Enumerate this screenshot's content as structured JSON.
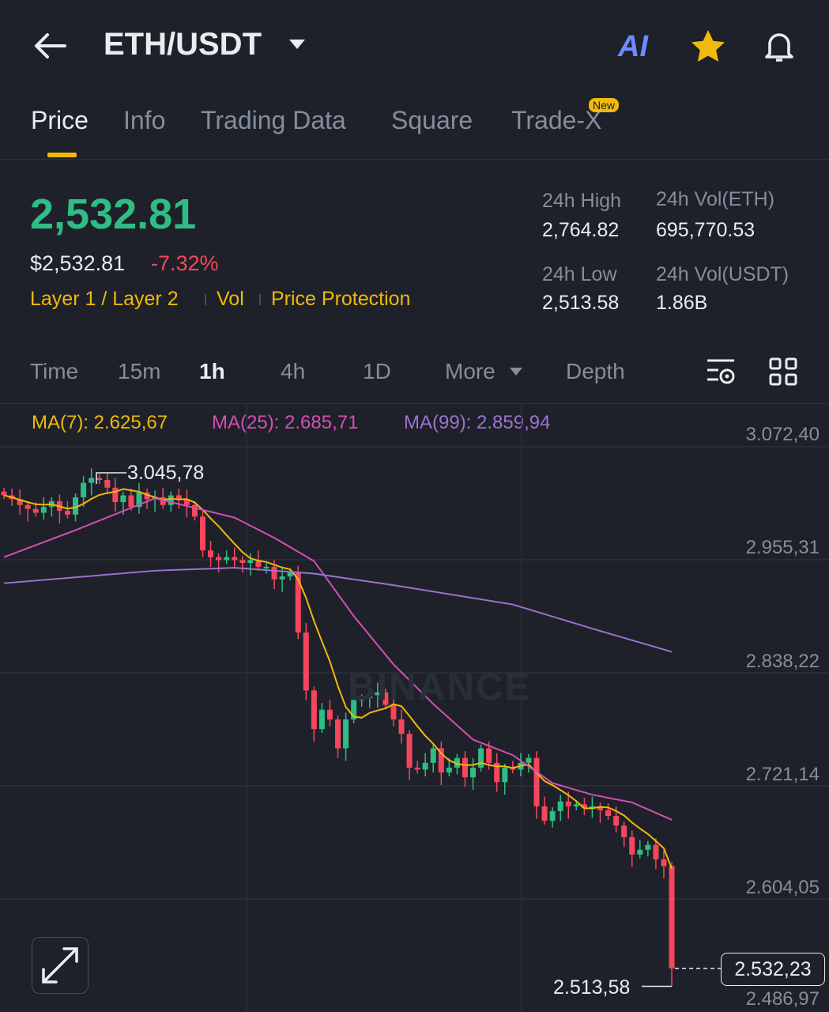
{
  "header": {
    "title": "ETH/USDT",
    "icons": [
      "back-arrow-icon",
      "ai-icon",
      "star-icon",
      "bell-icon"
    ]
  },
  "tabs": [
    {
      "label": "Price",
      "active": true
    },
    {
      "label": "Info"
    },
    {
      "label": "Trading Data"
    },
    {
      "label": "Square"
    },
    {
      "label": "Trade-X",
      "badge": "New"
    }
  ],
  "ticker": {
    "last_price": "2,532.81",
    "usd_price": "$2,532.81",
    "change": "-7.32%",
    "tags": [
      "Layer 1 / Layer 2",
      "Vol",
      "Price Protection"
    ],
    "high_label": "24h High",
    "high": "2,764.82",
    "low_label": "24h Low",
    "low": "2,513.58",
    "vol_eth_label": "24h Vol(ETH)",
    "vol_eth": "695,770.53",
    "vol_usdt_label": "24h Vol(USDT)",
    "vol_usdt": "1.86B"
  },
  "timeframes": {
    "items": [
      "Time",
      "15m",
      "1h",
      "4h",
      "1D"
    ],
    "selected": "1h",
    "more": "More",
    "depth": "Depth"
  },
  "ma_legend": {
    "ma7": "MA(7): 2.625,67",
    "ma25": "MA(25): 2.685,71",
    "ma99": "MA(99): 2.859,94"
  },
  "colors": {
    "up": "#2ebd85",
    "down": "#f6465d",
    "accent": "#f0b90b",
    "ma7": "#f0b90b",
    "ma25": "#d44fb4",
    "ma99": "#9b72d0"
  },
  "chart_data": {
    "type": "candlestick",
    "interval": "1h",
    "y_ticks": [
      "3.072,40",
      "2.955,31",
      "2.838,22",
      "2.721,14",
      "2.604,05",
      "2.486,97"
    ],
    "ylim": [
      2486.97,
      3072.4
    ],
    "high_marker": "3.045,78",
    "low_marker": "2.513,58",
    "current_price": "2.532,23",
    "watermark": "BINANCE",
    "close": [
      3022,
      3018,
      3012,
      3008,
      3004,
      3010,
      3016,
      3006,
      3002,
      3020,
      3035,
      3040,
      3038,
      3030,
      3015,
      3022,
      3010,
      3025,
      3018,
      3020,
      3012,
      3022,
      3018,
      3012,
      3000,
      2965,
      2958,
      2955,
      2958,
      2955,
      2952,
      2955,
      2948,
      2948,
      2935,
      2938,
      2942,
      2880,
      2820,
      2780,
      2800,
      2790,
      2760,
      2790,
      2810,
      2812,
      2815,
      2818,
      2805,
      2790,
      2775,
      2740,
      2738,
      2745,
      2760,
      2735,
      2740,
      2750,
      2730,
      2740,
      2760,
      2745,
      2725,
      2740,
      2738,
      2745,
      2750,
      2700,
      2685,
      2695,
      2705,
      2700,
      2702,
      2698,
      2700,
      2696,
      2690,
      2680,
      2668,
      2650,
      2655,
      2660,
      2645,
      2638,
      2532.23
    ],
    "ma25": [
      [
        0,
        2958
      ],
      [
        9,
        2986
      ],
      [
        19,
        3019
      ],
      [
        29,
        2999
      ],
      [
        34,
        2978
      ],
      [
        39,
        2954
      ],
      [
        44,
        2897
      ],
      [
        49,
        2847
      ],
      [
        54,
        2806
      ],
      [
        59,
        2769
      ],
      [
        64,
        2753
      ],
      [
        69,
        2724
      ],
      [
        74,
        2712
      ],
      [
        79,
        2704
      ],
      [
        84,
        2686
      ]
    ],
    "ma99": [
      [
        0,
        2931
      ],
      [
        19,
        2944
      ],
      [
        29,
        2947
      ],
      [
        39,
        2941
      ],
      [
        49,
        2929
      ],
      [
        64,
        2909
      ],
      [
        74,
        2884
      ],
      [
        84,
        2859.94
      ]
    ]
  }
}
